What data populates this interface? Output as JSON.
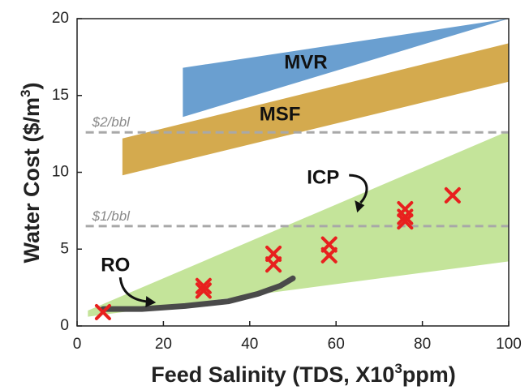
{
  "chart_data": {
    "type": "scatter",
    "xlabel_main": "Feed Salinity (TDS, X10",
    "xlabel_sup": "3",
    "xlabel_end": "ppm)",
    "ylabel_main": "Water Cost ($/m",
    "ylabel_sup": "3",
    "ylabel_end": ")",
    "xlim": [
      0,
      100
    ],
    "ylim": [
      0,
      20
    ],
    "x_ticks": [
      0,
      20,
      40,
      60,
      80,
      100
    ],
    "y_ticks": [
      0,
      5,
      10,
      15,
      20
    ],
    "x_tick_labels": [
      "0",
      "20",
      "40",
      "60",
      "80",
      "100"
    ],
    "y_tick_labels": [
      "0",
      "5",
      "10",
      "15",
      "20"
    ],
    "grid": false,
    "reference_lines": [
      {
        "label": "$2/bbl",
        "y": 12.6,
        "x": [
          2,
          100
        ]
      },
      {
        "label": "$1/bbl",
        "y": 6.5,
        "x": [
          2,
          100
        ]
      }
    ],
    "bands": [
      {
        "label": "MVR",
        "color": "#6a9fd0",
        "polygon": [
          [
            24.5,
            16.8
          ],
          [
            100,
            21.0
          ],
          [
            100,
            20.2
          ],
          [
            24.5,
            13.6
          ]
        ],
        "label_at": [
          53,
          17.1
        ]
      },
      {
        "label": "MSF",
        "color": "#d4aa4e",
        "polygon": [
          [
            10.5,
            12.2
          ],
          [
            100,
            18.4
          ],
          [
            100,
            15.9
          ],
          [
            10.5,
            9.8
          ]
        ],
        "label_at": [
          47,
          13.7
        ]
      },
      {
        "label": "ICP",
        "color": "#c4e49a",
        "polygon": [
          [
            2.5,
            1.0
          ],
          [
            100,
            12.7
          ],
          [
            100,
            4.2
          ],
          [
            2.5,
            0.6
          ]
        ],
        "label_at": [
          57,
          9.6
        ]
      }
    ],
    "ro_curve": {
      "label": "RO",
      "color": "#4a4a4a",
      "x": [
        6,
        15,
        25,
        35,
        42,
        47,
        50
      ],
      "y": [
        1.1,
        1.1,
        1.3,
        1.6,
        2.1,
        2.6,
        3.1
      ],
      "label_at": [
        5.5,
        3.9
      ]
    },
    "series": [
      {
        "marker": "x",
        "color": "#e8201e",
        "x": [
          6,
          29.3,
          29.3,
          45.5,
          45.5,
          58.4,
          58.4,
          76,
          76,
          76,
          87
        ],
        "y": [
          0.9,
          2.6,
          2.3,
          4.7,
          4.0,
          5.3,
          4.6,
          7.6,
          7.1,
          6.8,
          8.5
        ]
      }
    ]
  }
}
